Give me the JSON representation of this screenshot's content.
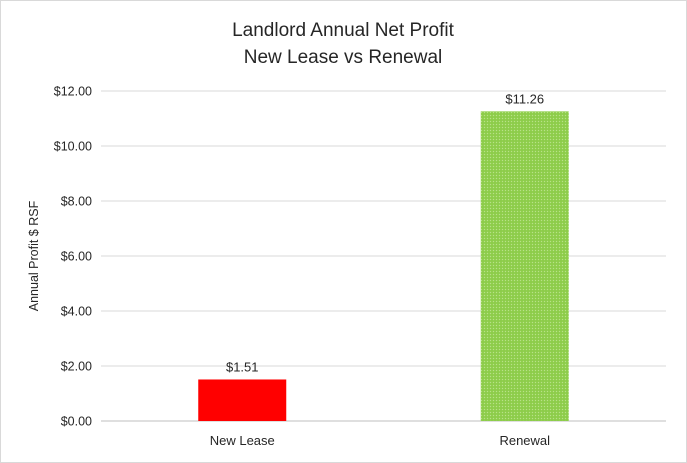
{
  "chart_data": {
    "type": "bar",
    "title_lines": [
      "Landlord Annual Net Profit",
      "New Lease vs Renewal"
    ],
    "ylabel": "Annual Profit $ RSF",
    "xlabel": "",
    "categories": [
      "New Lease",
      "Renewal"
    ],
    "values": [
      1.51,
      11.26
    ],
    "data_labels": [
      "$1.51",
      "$11.26"
    ],
    "bar_colors": [
      "#ff0000",
      "#92d050"
    ],
    "bar_patterns": [
      "solid",
      "dotted"
    ],
    "ylim": [
      0,
      12
    ],
    "yticks": [
      0,
      2,
      4,
      6,
      8,
      10,
      12
    ],
    "ytick_labels": [
      "$0.00",
      "$2.00",
      "$4.00",
      "$6.00",
      "$8.00",
      "$10.00",
      "$12.00"
    ],
    "grid": true,
    "legend": "none"
  }
}
